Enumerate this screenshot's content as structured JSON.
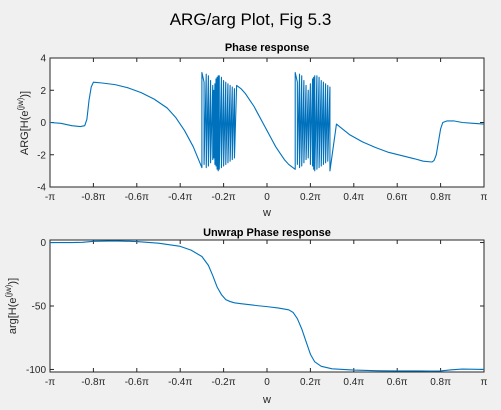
{
  "figure": {
    "title": "ARG/arg Plot, Fig 5.3"
  },
  "colors": {
    "line": "#0072bd",
    "axes_bg": "#ffffff",
    "figure_bg": "#f0f0f0",
    "axis": "#262626"
  },
  "chart_data": [
    {
      "type": "line",
      "title": "Phase response",
      "xlabel": "w",
      "ylabel": "ARG[H(e^{jw})]",
      "xlim": [
        -1,
        1
      ],
      "ylim": [
        -4,
        4
      ],
      "x_unit": "pi",
      "x_ticks": [
        -1,
        -0.8,
        -0.6,
        -0.4,
        -0.2,
        0,
        0.2,
        0.4,
        0.6,
        0.8,
        1
      ],
      "x_tick_labels": [
        "-π",
        "-0.8π",
        "-0.6π",
        "-0.4π",
        "-0.2π",
        "0",
        "0.2π",
        "0.4π",
        "0.6π",
        "0.8π",
        "π"
      ],
      "y_ticks": [
        -4,
        -2,
        0,
        2,
        4
      ],
      "y_tick_labels": [
        "-4",
        "-2",
        "0",
        "2",
        "4"
      ],
      "grid": false,
      "series": [
        {
          "x": [
            -1,
            -0.95,
            -0.9,
            -0.86,
            -0.84,
            -0.83,
            -0.82,
            -0.81,
            -0.8,
            -0.76,
            -0.7,
            -0.64,
            -0.58,
            -0.52,
            -0.46,
            -0.42,
            -0.38,
            -0.34,
            -0.3,
            -0.3,
            -0.29,
            -0.29,
            -0.28,
            -0.28,
            -0.27,
            -0.27,
            -0.26,
            -0.26,
            -0.25,
            -0.25,
            -0.245,
            -0.245,
            -0.24,
            -0.24,
            -0.235,
            -0.235,
            -0.23,
            -0.23,
            -0.225,
            -0.225,
            -0.22,
            -0.22,
            -0.21,
            -0.21,
            -0.2,
            -0.2,
            -0.19,
            -0.19,
            -0.18,
            -0.18,
            -0.17,
            -0.17,
            -0.16,
            -0.16,
            -0.15,
            -0.15,
            -0.14,
            -0.12,
            -0.1,
            -0.08,
            -0.06,
            -0.04,
            -0.02,
            0,
            0.02,
            0.04,
            0.06,
            0.08,
            0.1,
            0.12,
            0.13,
            0.13,
            0.14,
            0.14,
            0.15,
            0.15,
            0.16,
            0.16,
            0.17,
            0.17,
            0.18,
            0.18,
            0.19,
            0.19,
            0.2,
            0.2,
            0.21,
            0.21,
            0.215,
            0.215,
            0.22,
            0.22,
            0.23,
            0.23,
            0.24,
            0.24,
            0.25,
            0.25,
            0.26,
            0.26,
            0.27,
            0.27,
            0.28,
            0.28,
            0.29,
            0.29,
            0.32,
            0.38,
            0.44,
            0.5,
            0.56,
            0.62,
            0.68,
            0.72,
            0.76,
            0.77,
            0.78,
            0.79,
            0.8,
            0.81,
            0.83,
            0.86,
            0.9,
            0.95,
            1
          ],
          "y": [
            0,
            -0.05,
            -0.2,
            -0.25,
            -0.2,
            0.2,
            1.4,
            2.2,
            2.5,
            2.45,
            2.35,
            2.15,
            1.85,
            1.45,
            0.9,
            0.3,
            -0.5,
            -1.5,
            -2.8,
            3.1,
            2.5,
            -2.6,
            3.0,
            -2.8,
            2.9,
            -2.7,
            2.6,
            -2.5,
            2.3,
            -2.3,
            2.0,
            -2.2,
            2.4,
            -2.6,
            2.7,
            -2.7,
            2.8,
            -2.9,
            2.9,
            -3.0,
            2.9,
            -2.9,
            2.8,
            -2.8,
            2.6,
            -2.7,
            2.5,
            -2.6,
            2.4,
            -2.5,
            2.3,
            -2.4,
            2.2,
            -2.3,
            2.1,
            -2.2,
            2.3,
            2.1,
            1.8,
            1.4,
            1.0,
            0.5,
            0.0,
            -0.5,
            -1.0,
            -1.5,
            -1.9,
            -2.3,
            -2.6,
            -2.8,
            -2.9,
            3.1,
            2.5,
            -2.6,
            3.0,
            -2.8,
            2.9,
            -2.7,
            2.6,
            -2.5,
            2.3,
            -2.3,
            2.0,
            -2.2,
            2.4,
            -2.6,
            2.7,
            -2.7,
            2.8,
            -2.9,
            2.9,
            -3.0,
            2.9,
            -2.9,
            2.8,
            -2.8,
            2.6,
            -2.7,
            2.5,
            -2.6,
            2.4,
            -2.5,
            2.3,
            -2.4,
            2.2,
            -3.0,
            -0.1,
            -0.75,
            -1.2,
            -1.55,
            -1.85,
            -2.05,
            -2.25,
            -2.4,
            -2.45,
            -2.35,
            -2.0,
            -1.2,
            -0.4,
            0.0,
            0.1,
            0.1,
            0.0,
            -0.05,
            -0.1
          ]
        }
      ]
    },
    {
      "type": "line",
      "title": "Unwrap Phase response",
      "xlabel": "w",
      "ylabel": "arg[H(e^{jw})]",
      "xlim": [
        -1,
        1
      ],
      "ylim": [
        -102,
        2
      ],
      "x_unit": "pi",
      "x_ticks": [
        -1,
        -0.8,
        -0.6,
        -0.4,
        -0.2,
        0,
        0.2,
        0.4,
        0.6,
        0.8,
        1
      ],
      "x_tick_labels": [
        "-π",
        "-0.8π",
        "-0.6π",
        "-0.4π",
        "-0.2π",
        "0",
        "0.2π",
        "0.4π",
        "0.6π",
        "0.8π",
        "π"
      ],
      "y_ticks": [
        -100,
        -50,
        0
      ],
      "y_tick_labels": [
        "-100",
        "-50",
        "0"
      ],
      "grid": false,
      "series": [
        {
          "x": [
            -1,
            -0.9,
            -0.85,
            -0.8,
            -0.7,
            -0.6,
            -0.5,
            -0.4,
            -0.35,
            -0.3,
            -0.27,
            -0.25,
            -0.23,
            -0.21,
            -0.19,
            -0.17,
            -0.15,
            -0.12,
            -0.08,
            -0.04,
            0,
            0.05,
            0.1,
            0.12,
            0.14,
            0.16,
            0.18,
            0.2,
            0.22,
            0.25,
            0.3,
            0.4,
            0.5,
            0.6,
            0.7,
            0.75,
            0.8,
            0.85,
            0.9,
            1
          ],
          "y": [
            0,
            0,
            0.2,
            1.0,
            1.3,
            0.8,
            -0.5,
            -3,
            -6,
            -11,
            -18,
            -26,
            -35,
            -41,
            -45,
            -46.5,
            -47.5,
            -48.2,
            -49,
            -49.8,
            -50.5,
            -51.5,
            -53,
            -55,
            -60,
            -68,
            -78,
            -88,
            -94,
            -97.5,
            -99.5,
            -100.5,
            -101,
            -101.2,
            -101.2,
            -101.3,
            -101.2,
            -100.3,
            -99.7,
            -100
          ]
        }
      ]
    }
  ]
}
